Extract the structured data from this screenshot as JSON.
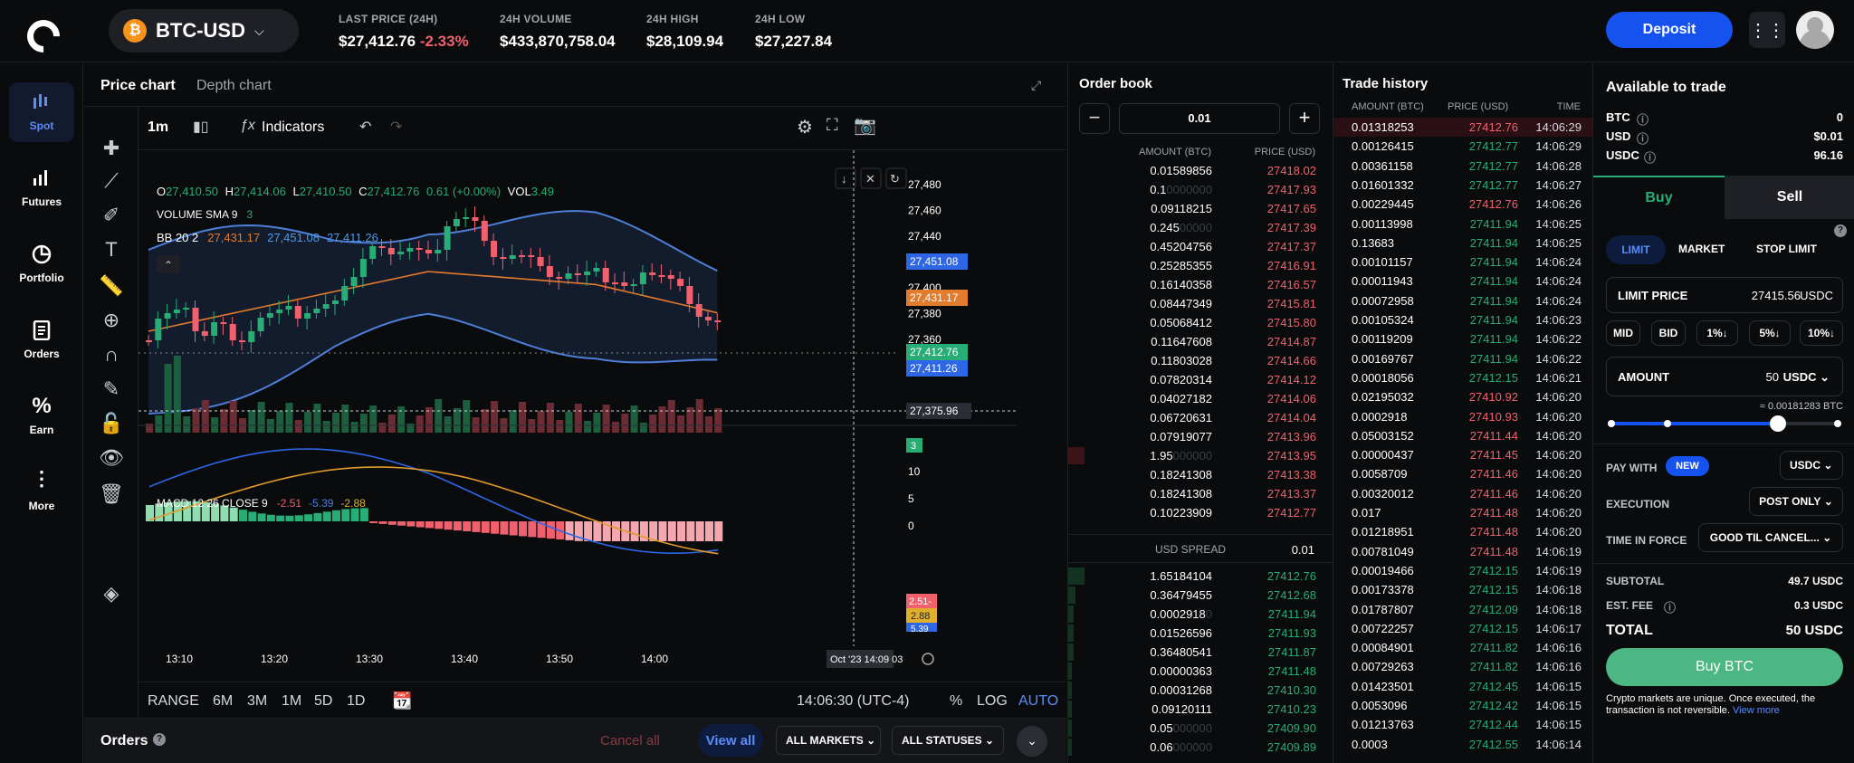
{
  "header": {
    "pair": "BTC-USD",
    "coin_icon": "₿",
    "stats": [
      {
        "label": "LAST PRICE (24H)",
        "value": "$27,412.76",
        "change": "-2.33%"
      },
      {
        "label": "24H VOLUME",
        "value": "$433,870,758.04"
      },
      {
        "label": "24H HIGH",
        "value": "$28,109.94"
      },
      {
        "label": "24H LOW",
        "value": "$27,227.84"
      }
    ],
    "deposit_label": "Deposit"
  },
  "nav": [
    {
      "label": "Spot",
      "icon": "spot-icon"
    },
    {
      "label": "Futures",
      "icon": "futures-icon"
    },
    {
      "label": "Portfolio",
      "icon": "portfolio-icon"
    },
    {
      "label": "Orders",
      "icon": "orders-icon"
    },
    {
      "label": "Earn",
      "icon": "earn-icon"
    },
    {
      "label": "More",
      "icon": "more-icon"
    }
  ],
  "chart_panel": {
    "tabs": [
      "Price chart",
      "Depth chart"
    ],
    "interval": "1m",
    "indicators_label": "Indicators",
    "ohlc": {
      "o_label": "O",
      "o": "27,410.50",
      "h_label": "H",
      "h": "27,414.06",
      "l_label": "L",
      "l": "27,410.50",
      "c_label": "C",
      "c": "27,412.76",
      "chg": "0.61 (+0.00%)",
      "vol_label": "VOL",
      "vol": "3.49"
    },
    "volume_sma_label": "VOLUME SMA 9",
    "volume_sma_value": "3",
    "bb_label": "BB 20 2",
    "bb_values": [
      "27,431.17",
      "27,451.08",
      "27,411.26"
    ],
    "macd_label": "MACD 12 26 CLOSE 9",
    "macd_values": [
      "-2.51",
      "-5.39",
      "-2.88"
    ],
    "price_axis": [
      "27,480",
      "27,460",
      "27,440",
      "27,420",
      "27,400",
      "27,380",
      "27,360"
    ],
    "macd_axis": [
      "15",
      "10",
      "5",
      "0"
    ],
    "price_tags": [
      "27,451.08",
      "27,431.17",
      "27,412.76",
      "27,411.26",
      "27,375.96",
      "3"
    ],
    "macd_tags": [
      "2.51-",
      "2.88",
      "5.39"
    ],
    "time_axis": [
      "13:10",
      "13:20",
      "13:30",
      "13:40",
      "13:50",
      "14:00"
    ],
    "crosshair_time": "Oct '23  14:09 03",
    "ranges": [
      "RANGE",
      "6M",
      "3M",
      "1M",
      "5D",
      "1D"
    ],
    "clock": "14:06:30 (UTC-4)",
    "scale_opts": [
      "%",
      "LOG",
      "AUTO"
    ]
  },
  "chart_data": {
    "type": "candlestick",
    "x_range": [
      "13:05",
      "14:09"
    ],
    "y_range": [
      27360,
      27480
    ],
    "bollinger": {
      "upper": 27451.08,
      "middle": 27431.17,
      "lower": 27411.26
    },
    "last_close": 27412.76,
    "crosshair_price": 27375.96,
    "macd": {
      "macd": -2.51,
      "signal": -2.88,
      "histogram": -5.39
    }
  },
  "orders_bar": {
    "title": "Orders",
    "cancel_all": "Cancel all",
    "view_all": "View all",
    "markets": "ALL MARKETS",
    "statuses": "ALL STATUSES"
  },
  "order_book": {
    "title": "Order book",
    "increment": "0.01",
    "headers": [
      "AMOUNT (BTC)",
      "PRICE (USD)"
    ],
    "asks": [
      {
        "amount": "0.01589856",
        "price": "27418.02"
      },
      {
        "amount": "0.1",
        "dim": "0000000",
        "price": "27417.93"
      },
      {
        "amount": "0.09118215",
        "price": "27417.65"
      },
      {
        "amount": "0.245",
        "dim": "00000",
        "price": "27417.39"
      },
      {
        "amount": "0.45204756",
        "price": "27417.37"
      },
      {
        "amount": "0.25285355",
        "price": "27416.91"
      },
      {
        "amount": "0.16140358",
        "price": "27416.57"
      },
      {
        "amount": "0.08447349",
        "price": "27415.81"
      },
      {
        "amount": "0.05068412",
        "price": "27415.80"
      },
      {
        "amount": "0.11647608",
        "price": "27414.87"
      },
      {
        "amount": "0.11803028",
        "price": "27414.66"
      },
      {
        "amount": "0.07820314",
        "price": "27414.12"
      },
      {
        "amount": "0.04027182",
        "price": "27414.06"
      },
      {
        "amount": "0.06720631",
        "price": "27414.04"
      },
      {
        "amount": "0.07919077",
        "price": "27413.96"
      },
      {
        "amount": "1.95",
        "dim": "000000",
        "price": "27413.95"
      },
      {
        "amount": "0.18241308",
        "price": "27413.38"
      },
      {
        "amount": "0.18241308",
        "price": "27413.37"
      },
      {
        "amount": "0.10223909",
        "price": "27412.77"
      }
    ],
    "spread_label": "USD SPREAD",
    "spread_value": "0.01",
    "bids": [
      {
        "amount": "1.65184104",
        "price": "27412.76"
      },
      {
        "amount": "0.36479455",
        "price": "27412.68"
      },
      {
        "amount": "0.0002918",
        "dim": "0",
        "price": "27411.94"
      },
      {
        "amount": "0.01526596",
        "price": "27411.93"
      },
      {
        "amount": "0.36480541",
        "price": "27411.87"
      },
      {
        "amount": "0.00000363",
        "price": "27411.48"
      },
      {
        "amount": "0.00031268",
        "price": "27410.30"
      },
      {
        "amount": "0.09120111",
        "price": "27410.23"
      },
      {
        "amount": "0.05",
        "dim": "000000",
        "price": "27409.90"
      },
      {
        "amount": "0.06",
        "dim": "000000",
        "price": "27409.89"
      }
    ]
  },
  "trade_history": {
    "title": "Trade history",
    "headers": [
      "AMOUNT (BTC)",
      "PRICE (USD)",
      "TIME"
    ],
    "rows": [
      {
        "amount": "0.01318253",
        "price": "27412.76",
        "side": "sell",
        "time": "14:06:29"
      },
      {
        "amount": "0.00126415",
        "price": "27412.77",
        "side": "buy",
        "time": "14:06:29"
      },
      {
        "amount": "0.00361158",
        "price": "27412.77",
        "side": "buy",
        "time": "14:06:28"
      },
      {
        "amount": "0.01601332",
        "price": "27412.77",
        "side": "buy",
        "time": "14:06:27"
      },
      {
        "amount": "0.00229445",
        "price": "27412.76",
        "side": "sell",
        "time": "14:06:26"
      },
      {
        "amount": "0.00113998",
        "price": "27411.94",
        "side": "buy",
        "time": "14:06:25"
      },
      {
        "amount": "0.13683",
        "price": "27411.94",
        "side": "buy",
        "time": "14:06:25"
      },
      {
        "amount": "0.00101157",
        "price": "27411.94",
        "side": "buy",
        "time": "14:06:24"
      },
      {
        "amount": "0.00011943",
        "price": "27411.94",
        "side": "buy",
        "time": "14:06:24"
      },
      {
        "amount": "0.00072958",
        "price": "27411.94",
        "side": "buy",
        "time": "14:06:24"
      },
      {
        "amount": "0.00105324",
        "price": "27411.94",
        "side": "buy",
        "time": "14:06:23"
      },
      {
        "amount": "0.00119209",
        "price": "27411.94",
        "side": "buy",
        "time": "14:06:22"
      },
      {
        "amount": "0.00169767",
        "price": "27411.94",
        "side": "buy",
        "time": "14:06:22"
      },
      {
        "amount": "0.00018056",
        "price": "27412.15",
        "side": "buy",
        "time": "14:06:21"
      },
      {
        "amount": "0.02195032",
        "price": "27410.92",
        "side": "sell",
        "time": "14:06:20"
      },
      {
        "amount": "0.0002918",
        "price": "27410.93",
        "side": "sell",
        "time": "14:06:20"
      },
      {
        "amount": "0.05003152",
        "price": "27411.44",
        "side": "sell",
        "time": "14:06:20"
      },
      {
        "amount": "0.00000437",
        "price": "27411.45",
        "side": "sell",
        "time": "14:06:20"
      },
      {
        "amount": "0.0058709",
        "price": "27411.46",
        "side": "sell",
        "time": "14:06:20"
      },
      {
        "amount": "0.00320012",
        "price": "27411.46",
        "side": "sell",
        "time": "14:06:20"
      },
      {
        "amount": "0.017",
        "price": "27411.48",
        "side": "sell",
        "time": "14:06:20"
      },
      {
        "amount": "0.01218951",
        "price": "27411.48",
        "side": "sell",
        "time": "14:06:20"
      },
      {
        "amount": "0.00781049",
        "price": "27411.48",
        "side": "sell",
        "time": "14:06:19"
      },
      {
        "amount": "0.00019466",
        "price": "27412.15",
        "side": "buy",
        "time": "14:06:19"
      },
      {
        "amount": "0.00173378",
        "price": "27412.15",
        "side": "buy",
        "time": "14:06:18"
      },
      {
        "amount": "0.01787807",
        "price": "27412.09",
        "side": "buy",
        "time": "14:06:18"
      },
      {
        "amount": "0.00722257",
        "price": "27412.15",
        "side": "buy",
        "time": "14:06:17"
      },
      {
        "amount": "0.00084901",
        "price": "27411.82",
        "side": "buy",
        "time": "14:06:16"
      },
      {
        "amount": "0.00729263",
        "price": "27411.82",
        "side": "buy",
        "time": "14:06:16"
      },
      {
        "amount": "0.01423501",
        "price": "27412.45",
        "side": "buy",
        "time": "14:06:15"
      },
      {
        "amount": "0.0053096",
        "price": "27412.42",
        "side": "buy",
        "time": "14:06:15"
      },
      {
        "amount": "0.01213763",
        "price": "27412.44",
        "side": "buy",
        "time": "14:06:15"
      },
      {
        "amount": "0.0003",
        "price": "27412.55",
        "side": "buy",
        "time": "14:06:14"
      }
    ]
  },
  "trade_form": {
    "title": "Available to trade",
    "balances": [
      {
        "asset": "BTC",
        "value": "0"
      },
      {
        "asset": "USD",
        "value": "$0.01"
      },
      {
        "asset": "USDC",
        "value": "96.16"
      }
    ],
    "buy_tab": "Buy",
    "sell_tab": "Sell",
    "order_types": [
      "LIMIT",
      "MARKET",
      "STOP LIMIT"
    ],
    "limit_price_label": "LIMIT PRICE",
    "limit_price_value": "27415.56",
    "limit_price_unit": "USDC",
    "quick_prices": [
      "MID",
      "BID",
      "1%↓",
      "5%↓",
      "10%↓"
    ],
    "amount_label": "AMOUNT",
    "amount_value": "50",
    "amount_unit": "USDC",
    "amount_btc": "≈ 0.00181283 BTC",
    "slider_fraction": 0.5,
    "pay_with_label": "PAY WITH",
    "new_badge": "NEW",
    "pay_with_value": "USDC",
    "execution_label": "EXECUTION",
    "execution_value": "POST ONLY",
    "tif_label": "TIME IN FORCE",
    "tif_value": "GOOD TIL CANCEL...",
    "subtotal_label": "SUBTOTAL",
    "subtotal_value": "49.7 USDC",
    "fee_label": "EST. FEE",
    "fee_value": "0.3 USDC",
    "total_label": "TOTAL",
    "total_value": "50 USDC",
    "buy_button": "Buy BTC",
    "disclaimer": "Crypto markets are unique. Once executed, the transaction is not reversible.",
    "view_more": "View more"
  }
}
